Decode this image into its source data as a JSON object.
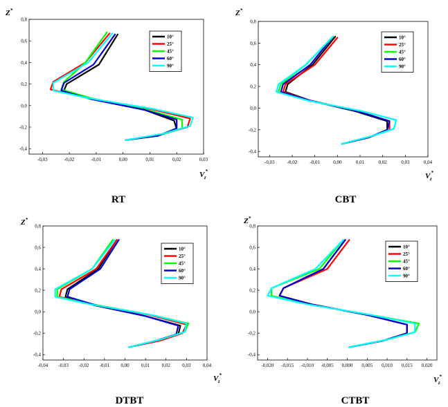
{
  "chart_data": [
    {
      "type": "line",
      "caption": "RT",
      "ylabel": "Z*",
      "xlabel": "Vz*",
      "xlim": [
        -0.035,
        0.03
      ],
      "ylim": [
        -0.45,
        0.8
      ],
      "xticks": [
        -0.03,
        -0.02,
        -0.01,
        0.0,
        0.01,
        0.02,
        0.03
      ],
      "xtick_labels": [
        "-0,03",
        "-0,02",
        "-0,01",
        "0,00",
        "0,01",
        "0,02",
        "0,03"
      ],
      "yticks": [
        -0.4,
        -0.2,
        0.0,
        0.2,
        0.4,
        0.6,
        0.8
      ],
      "ytick_labels": [
        "-0,4",
        "-0,2",
        "0,0",
        "0,2",
        "0,4",
        "0,6",
        "0,8"
      ],
      "legend_position": "top-right",
      "series": [
        {
          "name": "10°",
          "color": "#000000",
          "x": [
            -0.002,
            -0.009,
            -0.021,
            -0.022,
            -0.011,
            0.008,
            0.019,
            0.02,
            0.013,
            0.001
          ],
          "y": [
            0.66,
            0.38,
            0.2,
            0.14,
            0.06,
            -0.04,
            -0.14,
            -0.22,
            -0.28,
            -0.32
          ]
        },
        {
          "name": "25°",
          "color": "#ff0000",
          "x": [
            -0.005,
            -0.014,
            -0.026,
            -0.027,
            -0.013,
            0.01,
            0.025,
            0.024,
            0.014,
            0.001
          ],
          "y": [
            0.67,
            0.4,
            0.22,
            0.15,
            0.07,
            -0.03,
            -0.12,
            -0.2,
            -0.27,
            -0.32
          ]
        },
        {
          "name": "45°",
          "color": "#00ff00",
          "x": [
            -0.006,
            -0.014,
            -0.022,
            -0.023,
            -0.012,
            0.009,
            0.022,
            0.022,
            0.013,
            0.001
          ],
          "y": [
            0.68,
            0.4,
            0.22,
            0.15,
            0.07,
            -0.04,
            -0.13,
            -0.21,
            -0.28,
            -0.32
          ]
        },
        {
          "name": "60°",
          "color": "#0000cc",
          "x": [
            -0.003,
            -0.011,
            -0.022,
            -0.023,
            -0.012,
            0.008,
            0.02,
            0.02,
            0.013,
            0.001
          ],
          "y": [
            0.66,
            0.38,
            0.21,
            0.14,
            0.06,
            -0.04,
            -0.13,
            -0.21,
            -0.28,
            -0.32
          ]
        },
        {
          "name": "90°",
          "color": "#00ffff",
          "x": [
            -0.004,
            -0.013,
            -0.026,
            -0.026,
            -0.013,
            0.011,
            0.026,
            0.025,
            0.015,
            0.001
          ],
          "y": [
            0.67,
            0.4,
            0.21,
            0.14,
            0.07,
            -0.03,
            -0.11,
            -0.19,
            -0.26,
            -0.32
          ]
        }
      ]
    },
    {
      "type": "line",
      "caption": "CBT",
      "ylabel": "Z*",
      "xlabel": "Vz*",
      "xlim": [
        -0.035,
        0.04
      ],
      "ylim": [
        -0.45,
        0.8
      ],
      "xticks": [
        -0.03,
        -0.02,
        -0.01,
        0.0,
        0.01,
        0.02,
        0.03,
        0.04
      ],
      "xtick_labels": [
        "-0,03",
        "-0,02",
        "-0,01",
        "0,00",
        "0,01",
        "0,02",
        "0,03",
        "0,04"
      ],
      "yticks": [
        -0.4,
        -0.2,
        0.0,
        0.2,
        0.4,
        0.6,
        0.8
      ],
      "ytick_labels": [
        "-0,4",
        "-0,2",
        "0,0",
        "0,2",
        "0,4",
        "0,6",
        "0,8"
      ],
      "legend_position": "top-right",
      "series": [
        {
          "name": "10°",
          "color": "#000000",
          "x": [
            -0.001,
            -0.011,
            -0.022,
            -0.023,
            -0.012,
            0.008,
            0.022,
            0.022,
            0.014,
            0.002
          ],
          "y": [
            0.66,
            0.4,
            0.22,
            0.15,
            0.07,
            -0.03,
            -0.12,
            -0.2,
            -0.27,
            -0.33
          ]
        },
        {
          "name": "25°",
          "color": "#ff0000",
          "x": [
            0.0,
            -0.01,
            -0.023,
            -0.024,
            -0.012,
            0.009,
            0.023,
            0.023,
            0.014,
            0.002
          ],
          "y": [
            0.65,
            0.4,
            0.22,
            0.15,
            0.07,
            -0.03,
            -0.12,
            -0.2,
            -0.27,
            -0.33
          ]
        },
        {
          "name": "45°",
          "color": "#00ff00",
          "x": [
            -0.002,
            -0.014,
            -0.025,
            -0.026,
            -0.013,
            0.011,
            0.026,
            0.025,
            0.015,
            0.002
          ],
          "y": [
            0.66,
            0.4,
            0.22,
            0.15,
            0.07,
            -0.03,
            -0.11,
            -0.19,
            -0.26,
            -0.33
          ]
        },
        {
          "name": "60°",
          "color": "#0000cc",
          "x": [
            -0.002,
            -0.012,
            -0.024,
            -0.025,
            -0.012,
            0.009,
            0.023,
            0.022,
            0.014,
            0.002
          ],
          "y": [
            0.66,
            0.4,
            0.22,
            0.15,
            0.07,
            -0.03,
            -0.12,
            -0.2,
            -0.27,
            -0.33
          ]
        },
        {
          "name": "90°",
          "color": "#00ffff",
          "x": [
            -0.002,
            -0.014,
            -0.026,
            -0.027,
            -0.013,
            0.011,
            0.026,
            0.025,
            0.015,
            0.002
          ],
          "y": [
            0.66,
            0.4,
            0.22,
            0.15,
            0.07,
            -0.03,
            -0.11,
            -0.19,
            -0.26,
            -0.33
          ]
        }
      ]
    },
    {
      "type": "line",
      "caption": "DTBT",
      "ylabel": "Z*",
      "xlabel": "Vz*",
      "xlim": [
        -0.04,
        0.04
      ],
      "ylim": [
        -0.45,
        0.8
      ],
      "xticks": [
        -0.04,
        -0.03,
        -0.02,
        -0.01,
        0.0,
        0.01,
        0.02,
        0.03,
        0.04
      ],
      "xtick_labels": [
        "-0,04",
        "-0,03",
        "-0,02",
        "-0,01",
        "0,00",
        "0,01",
        "0,02",
        "0,03",
        "0,04"
      ],
      "yticks": [
        -0.4,
        -0.2,
        0.0,
        0.2,
        0.4,
        0.6,
        0.8
      ],
      "ytick_labels": [
        "-0,4",
        "-0,2",
        "0,0",
        "0,2",
        "0,4",
        "0,6",
        "0,8"
      ],
      "legend_position": "top-right",
      "series": [
        {
          "name": "10°",
          "color": "#000000",
          "x": [
            -0.004,
            -0.013,
            -0.028,
            -0.029,
            -0.015,
            0.01,
            0.027,
            0.026,
            0.016,
            0.002
          ],
          "y": [
            0.67,
            0.4,
            0.21,
            0.14,
            0.06,
            -0.04,
            -0.13,
            -0.21,
            -0.27,
            -0.33
          ]
        },
        {
          "name": "25°",
          "color": "#ff0000",
          "x": [
            -0.004,
            -0.014,
            -0.031,
            -0.032,
            -0.016,
            0.012,
            0.03,
            0.028,
            0.017,
            0.002
          ],
          "y": [
            0.67,
            0.4,
            0.21,
            0.14,
            0.07,
            -0.03,
            -0.12,
            -0.2,
            -0.27,
            -0.33
          ]
        },
        {
          "name": "45°",
          "color": "#00ff00",
          "x": [
            -0.006,
            -0.016,
            -0.033,
            -0.033,
            -0.016,
            0.013,
            0.031,
            0.029,
            0.017,
            0.002
          ],
          "y": [
            0.67,
            0.4,
            0.21,
            0.14,
            0.07,
            -0.03,
            -0.11,
            -0.19,
            -0.26,
            -0.33
          ]
        },
        {
          "name": "60°",
          "color": "#0000cc",
          "x": [
            -0.003,
            -0.012,
            -0.027,
            -0.028,
            -0.014,
            0.01,
            0.026,
            0.025,
            0.015,
            0.002
          ],
          "y": [
            0.67,
            0.4,
            0.21,
            0.14,
            0.06,
            -0.04,
            -0.13,
            -0.21,
            -0.27,
            -0.33
          ]
        },
        {
          "name": "90°",
          "color": "#00ffff",
          "x": [
            -0.005,
            -0.016,
            -0.034,
            -0.034,
            -0.017,
            0.013,
            0.03,
            0.029,
            0.017,
            0.002
          ],
          "y": [
            0.67,
            0.4,
            0.21,
            0.14,
            0.07,
            -0.03,
            -0.11,
            -0.19,
            -0.26,
            -0.33
          ]
        }
      ]
    },
    {
      "type": "line",
      "caption": "CTBT",
      "ylabel": "Z*",
      "xlabel": "Vz*",
      "xlim": [
        -0.0225,
        0.0225
      ],
      "ylim": [
        -0.45,
        0.8
      ],
      "xticks": [
        -0.02,
        -0.015,
        -0.01,
        -0.005,
        0.0,
        0.005,
        0.01,
        0.015,
        0.02
      ],
      "xtick_labels": [
        "-0,020",
        "-0,015",
        "-0,010",
        "-0,005",
        "0,000",
        "0,005",
        "0,010",
        "0,015",
        "0,020"
      ],
      "yticks": [
        -0.4,
        -0.2,
        0.0,
        0.2,
        0.4,
        0.6,
        0.8
      ],
      "ytick_labels": [
        "-0,4",
        "-0,2",
        "0,0",
        "0,2",
        "0,4",
        "0,6",
        "0,8"
      ],
      "legend_position": "top-right",
      "series": [
        {
          "name": "10°",
          "color": "#000000",
          "x": [
            -0.0005,
            -0.006,
            -0.016,
            -0.017,
            -0.009,
            0.005,
            0.015,
            0.015,
            0.009,
            0.0005
          ],
          "y": [
            0.67,
            0.4,
            0.22,
            0.15,
            0.07,
            -0.03,
            -0.12,
            -0.2,
            -0.27,
            -0.33
          ]
        },
        {
          "name": "25°",
          "color": "#ff0000",
          "x": [
            0.0005,
            -0.005,
            -0.016,
            -0.017,
            -0.009,
            0.005,
            0.015,
            0.015,
            0.009,
            0.0005
          ],
          "y": [
            0.67,
            0.4,
            0.22,
            0.15,
            0.07,
            -0.03,
            -0.12,
            -0.2,
            -0.27,
            -0.33
          ]
        },
        {
          "name": "45°",
          "color": "#00ff00",
          "x": [
            -0.001,
            -0.007,
            -0.019,
            -0.019,
            -0.01,
            0.006,
            0.018,
            0.017,
            0.01,
            0.0005
          ],
          "y": [
            0.67,
            0.4,
            0.22,
            0.15,
            0.07,
            -0.03,
            -0.11,
            -0.19,
            -0.26,
            -0.33
          ]
        },
        {
          "name": "60°",
          "color": "#0000cc",
          "x": [
            -0.0005,
            -0.006,
            -0.016,
            -0.017,
            -0.009,
            0.005,
            0.015,
            0.015,
            0.009,
            0.0005
          ],
          "y": [
            0.67,
            0.4,
            0.22,
            0.15,
            0.07,
            -0.03,
            -0.12,
            -0.2,
            -0.27,
            -0.33
          ]
        },
        {
          "name": "90°",
          "color": "#00ffff",
          "x": [
            -0.001,
            -0.008,
            -0.019,
            -0.02,
            -0.01,
            0.006,
            0.017,
            0.017,
            0.01,
            0.0005
          ],
          "y": [
            0.67,
            0.4,
            0.22,
            0.15,
            0.07,
            -0.03,
            -0.11,
            -0.19,
            -0.26,
            -0.33
          ]
        }
      ]
    }
  ]
}
